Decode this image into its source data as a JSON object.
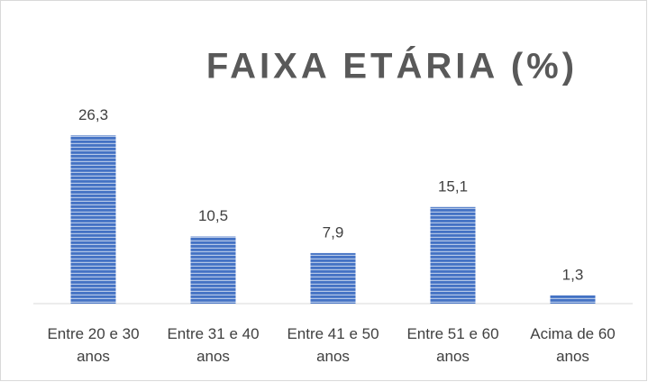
{
  "chart_data": {
    "type": "bar",
    "title": "FAIXA ETÁRIA (%)",
    "categories": [
      "Entre 20 e 30 anos",
      "Entre 31 e 40 anos",
      "Entre 41 e 50 anos",
      "Entre 51 e 60 anos",
      "Acima de 60 anos"
    ],
    "values": [
      26.3,
      10.5,
      7.9,
      15.1,
      1.3
    ],
    "value_labels": [
      "26,3",
      "10,5",
      "7,9",
      "15,1",
      "1,3"
    ],
    "color": "#4472c4",
    "ylim": [
      0,
      30
    ]
  }
}
